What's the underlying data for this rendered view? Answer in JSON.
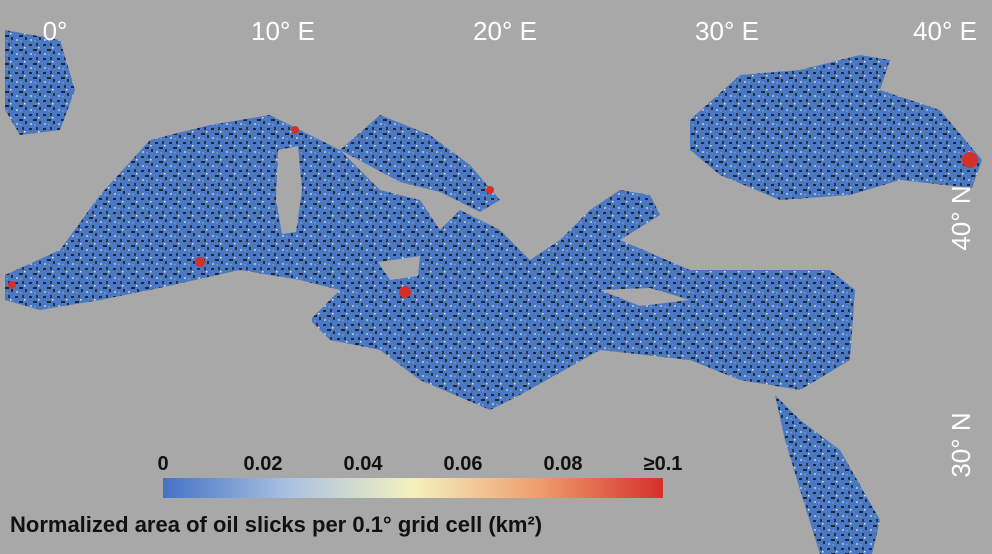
{
  "map": {
    "lon_labels": [
      "0°",
      "10° E",
      "20° E",
      "30° E",
      "40° E"
    ],
    "lat_labels": [
      "40° N",
      "30° N"
    ]
  },
  "legend": {
    "title": "Normalized area of oil slicks per 0.1° grid cell (km²)",
    "ticks": [
      0,
      0.02,
      0.04,
      0.06,
      0.08,
      {
        "value": 0.1,
        "label": "≥0.1"
      }
    ],
    "colors": [
      "#4472c4",
      "#a9c1e2",
      "#f4f1bf",
      "#ef9e6d",
      "#d4302a"
    ]
  }
}
